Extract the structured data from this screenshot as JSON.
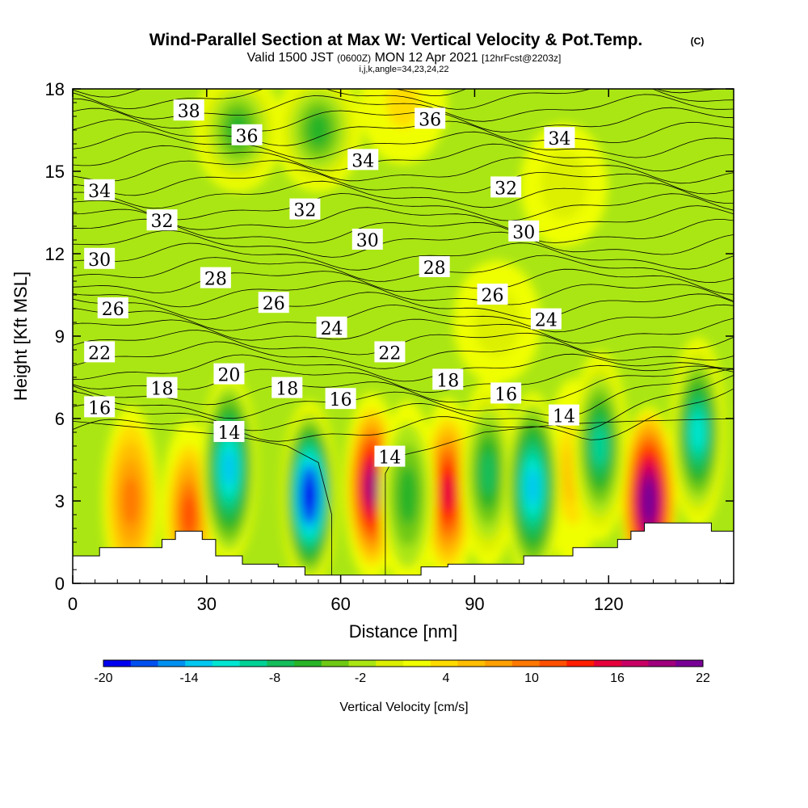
{
  "header": {
    "title": "Wind-Parallel Section at Max W: Vertical Velocity & Pot.Temp.",
    "copyright": "(C)",
    "valid_prefix": "Valid 1500 JST",
    "valid_utc": "(0600Z)",
    "valid_date": "MON 12 Apr 2021",
    "forecast": "[12hrFcst@2203z]",
    "indices": "i,j,k,angle=34,23,24,22"
  },
  "chart_data": {
    "type": "heatmap",
    "title": "Wind-Parallel Section at Max W: Vertical Velocity & Pot.Temp.",
    "xlabel": "Distance [nm]",
    "ylabel": "Height [Kft MSL]",
    "xlim": [
      0,
      148
    ],
    "ylim": [
      0,
      18
    ],
    "x_ticks": [
      0,
      30,
      60,
      90,
      120
    ],
    "y_ticks": [
      0,
      3,
      6,
      9,
      12,
      15,
      18
    ],
    "colorbar": {
      "label": "Vertical Velocity [cm/s]",
      "min": -20,
      "max": 22,
      "tick_values": [
        -20,
        -14,
        -8,
        -2,
        4,
        10,
        16,
        22
      ],
      "tick_labels": [
        "-20",
        "-14",
        "-8",
        "-2",
        "4",
        "10",
        "16",
        "22"
      ],
      "colors": [
        "#0000f0",
        "#0050f0",
        "#0090f0",
        "#00c8f0",
        "#00e6d2",
        "#00d296",
        "#14be5a",
        "#28b428",
        "#6ec814",
        "#aae614",
        "#dcf000",
        "#f0ff00",
        "#ffdc00",
        "#ffbe00",
        "#ffa000",
        "#ff7800",
        "#ff5000",
        "#ff1e00",
        "#e6003c",
        "#c80064",
        "#a0007d",
        "#780096"
      ]
    },
    "updraft_cores": [
      {
        "x": 13,
        "y": 3.0,
        "w": 9
      },
      {
        "x": 26,
        "y": 2.5,
        "w": 12
      },
      {
        "x": 67,
        "y": 3.5,
        "w": 20
      },
      {
        "x": 84,
        "y": 3.3,
        "w": 16
      },
      {
        "x": 112,
        "y": 4.0,
        "w": 6
      },
      {
        "x": 129,
        "y": 3.0,
        "w": 22
      },
      {
        "x": 74,
        "y": 17.5,
        "w": 4
      },
      {
        "x": 110,
        "y": 14.5,
        "w": 0
      },
      {
        "x": 95,
        "y": 9.5,
        "w": 0
      }
    ],
    "downdraft_cores": [
      {
        "x": 35,
        "y": 4.2,
        "w": -13
      },
      {
        "x": 53,
        "y": 3.2,
        "w": -20
      },
      {
        "x": 75,
        "y": 3.2,
        "w": -5
      },
      {
        "x": 93,
        "y": 4.0,
        "w": -8
      },
      {
        "x": 103,
        "y": 3.5,
        "w": -13
      },
      {
        "x": 118,
        "y": 5.0,
        "w": -10
      },
      {
        "x": 140,
        "y": 5.5,
        "w": -12
      },
      {
        "x": 55,
        "y": 16.5,
        "w": -6
      },
      {
        "x": 37,
        "y": 16.5,
        "w": -6
      }
    ],
    "theta_contours": {
      "interval": 2,
      "labels": [
        {
          "text": "38",
          "x": 26,
          "y": 17.2
        },
        {
          "text": "36",
          "x": 39,
          "y": 16.3
        },
        {
          "text": "36",
          "x": 80,
          "y": 16.9
        },
        {
          "text": "34",
          "x": 109,
          "y": 16.2
        },
        {
          "text": "34",
          "x": 65,
          "y": 15.4
        },
        {
          "text": "34",
          "x": 6,
          "y": 14.3
        },
        {
          "text": "32",
          "x": 20,
          "y": 13.2
        },
        {
          "text": "32",
          "x": 52,
          "y": 13.6
        },
        {
          "text": "32",
          "x": 97,
          "y": 14.4
        },
        {
          "text": "30",
          "x": 66,
          "y": 12.5
        },
        {
          "text": "30",
          "x": 101,
          "y": 12.8
        },
        {
          "text": "30",
          "x": 6,
          "y": 11.8
        },
        {
          "text": "28",
          "x": 32,
          "y": 11.1
        },
        {
          "text": "28",
          "x": 81,
          "y": 11.5
        },
        {
          "text": "26",
          "x": 9,
          "y": 10.0
        },
        {
          "text": "26",
          "x": 45,
          "y": 10.2
        },
        {
          "text": "26",
          "x": 94,
          "y": 10.5
        },
        {
          "text": "24",
          "x": 58,
          "y": 9.3
        },
        {
          "text": "24",
          "x": 106,
          "y": 9.6
        },
        {
          "text": "22",
          "x": 6,
          "y": 8.4
        },
        {
          "text": "22",
          "x": 71,
          "y": 8.4
        },
        {
          "text": "20",
          "x": 35,
          "y": 7.6
        },
        {
          "text": "18",
          "x": 20,
          "y": 7.1
        },
        {
          "text": "18",
          "x": 48,
          "y": 7.1
        },
        {
          "text": "18",
          "x": 84,
          "y": 7.4
        },
        {
          "text": "16",
          "x": 6,
          "y": 6.4
        },
        {
          "text": "16",
          "x": 60,
          "y": 6.7
        },
        {
          "text": "16",
          "x": 97,
          "y": 6.9
        },
        {
          "text": "14",
          "x": 35,
          "y": 5.5
        },
        {
          "text": "14",
          "x": 71,
          "y": 4.6
        },
        {
          "text": "14",
          "x": 110,
          "y": 6.1
        }
      ]
    },
    "terrain": [
      [
        0,
        1.0
      ],
      [
        6,
        1.0
      ],
      [
        6,
        1.3
      ],
      [
        20,
        1.3
      ],
      [
        20,
        1.6
      ],
      [
        23,
        1.6
      ],
      [
        23,
        1.9
      ],
      [
        29,
        1.9
      ],
      [
        29,
        1.6
      ],
      [
        32,
        1.6
      ],
      [
        32,
        1.0
      ],
      [
        38,
        1.0
      ],
      [
        38,
        0.7
      ],
      [
        46,
        0.7
      ],
      [
        46,
        0.6
      ],
      [
        52,
        0.6
      ],
      [
        52,
        0.3
      ],
      [
        78,
        0.3
      ],
      [
        78,
        0.6
      ],
      [
        84,
        0.6
      ],
      [
        84,
        0.7
      ],
      [
        101,
        0.7
      ],
      [
        101,
        1.0
      ],
      [
        112,
        1.0
      ],
      [
        112,
        1.3
      ],
      [
        122,
        1.3
      ],
      [
        122,
        1.6
      ],
      [
        125,
        1.6
      ],
      [
        125,
        1.9
      ],
      [
        128,
        1.9
      ],
      [
        128,
        2.2
      ],
      [
        143,
        2.2
      ],
      [
        143,
        1.9
      ],
      [
        148,
        1.9
      ]
    ]
  }
}
